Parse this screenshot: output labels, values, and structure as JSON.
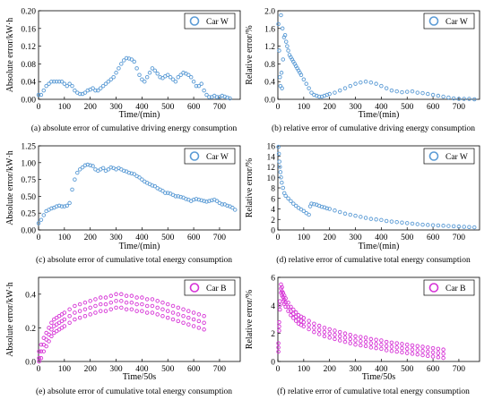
{
  "colors": {
    "blue": "#5b9bd5",
    "magenta": "#d633d6"
  },
  "chart_data": [
    {
      "id": "a",
      "type": "scatter",
      "caption": "(a) absolute error of cumulative driving energy consumption",
      "xlabel": "Time/(min)",
      "ylabel": "Absolute error/kW·h",
      "xlim": [
        0,
        780
      ],
      "ylim": [
        0,
        0.2
      ],
      "xticks": [
        0,
        100,
        200,
        300,
        400,
        500,
        600,
        700
      ],
      "yticks": [
        0.0,
        0.04,
        0.08,
        0.12,
        0.16,
        0.2
      ],
      "ytick_labels": [
        "0.00",
        "0.04",
        "0.08",
        "0.12",
        "0.16",
        "0.20"
      ],
      "legend": "Car W",
      "legend_position": "top-right",
      "marker": "circle",
      "color": "#5b9bd5",
      "series": [
        {
          "name": "Car W",
          "x": [
            0,
            10,
            20,
            30,
            40,
            50,
            60,
            70,
            80,
            90,
            100,
            110,
            120,
            130,
            140,
            150,
            160,
            170,
            180,
            190,
            200,
            210,
            220,
            230,
            240,
            250,
            260,
            270,
            280,
            290,
            300,
            310,
            320,
            330,
            340,
            350,
            360,
            370,
            380,
            390,
            400,
            410,
            420,
            430,
            440,
            450,
            460,
            470,
            480,
            490,
            500,
            510,
            520,
            530,
            540,
            550,
            560,
            570,
            580,
            590,
            600,
            610,
            620,
            630,
            640,
            650,
            660,
            670,
            680,
            690,
            700,
            710,
            720,
            730,
            740
          ],
          "y": [
            0.01,
            0.01,
            0.02,
            0.03,
            0.035,
            0.04,
            0.04,
            0.04,
            0.04,
            0.04,
            0.035,
            0.03,
            0.035,
            0.03,
            0.02,
            0.015,
            0.012,
            0.012,
            0.015,
            0.02,
            0.022,
            0.025,
            0.02,
            0.02,
            0.025,
            0.03,
            0.035,
            0.04,
            0.045,
            0.05,
            0.06,
            0.07,
            0.08,
            0.088,
            0.093,
            0.092,
            0.09,
            0.085,
            0.07,
            0.055,
            0.045,
            0.04,
            0.05,
            0.06,
            0.07,
            0.065,
            0.058,
            0.05,
            0.048,
            0.052,
            0.055,
            0.05,
            0.045,
            0.04,
            0.05,
            0.055,
            0.06,
            0.058,
            0.055,
            0.05,
            0.04,
            0.03,
            0.03,
            0.035,
            0.02,
            0.01,
            0.005,
            0.005,
            0.008,
            0.005,
            0.005,
            0.008,
            0.006,
            0.004,
            0.002
          ]
        }
      ]
    },
    {
      "id": "b",
      "type": "scatter",
      "caption": "(b) relative error of cumulative driving energy consumption",
      "xlabel": "Time/(min)",
      "ylabel": "Relative error/%",
      "xlim": [
        0,
        780
      ],
      "ylim": [
        0,
        2.0
      ],
      "xticks": [
        0,
        100,
        200,
        300,
        400,
        500,
        600,
        700
      ],
      "yticks": [
        0.0,
        0.4,
        0.8,
        1.2,
        1.6,
        2.0
      ],
      "ytick_labels": [
        "0.0",
        "0.4",
        "0.8",
        "1.2",
        "1.6",
        "2.0"
      ],
      "legend": "Car W",
      "legend_position": "top-right",
      "marker": "circle",
      "color": "#5b9bd5",
      "series": [
        {
          "name": "Car W",
          "x": [
            2,
            5,
            8,
            10,
            12,
            14,
            16,
            18,
            20,
            24,
            28,
            32,
            36,
            40,
            45,
            50,
            55,
            60,
            65,
            70,
            75,
            80,
            85,
            90,
            100,
            110,
            120,
            130,
            140,
            150,
            160,
            170,
            180,
            190,
            200,
            220,
            240,
            260,
            280,
            300,
            320,
            340,
            360,
            380,
            400,
            420,
            440,
            460,
            480,
            500,
            520,
            540,
            560,
            580,
            600,
            620,
            640,
            660,
            680,
            700,
            720,
            740,
            760
          ],
          "y": [
            1.7,
            1.1,
            0.5,
            0.3,
            1.9,
            0.6,
            0.25,
            1.6,
            0.9,
            1.4,
            1.45,
            1.3,
            1.2,
            1.1,
            1.0,
            0.95,
            0.9,
            0.85,
            0.8,
            0.75,
            0.7,
            0.65,
            0.6,
            0.55,
            0.45,
            0.35,
            0.25,
            0.15,
            0.1,
            0.08,
            0.06,
            0.06,
            0.08,
            0.1,
            0.12,
            0.15,
            0.2,
            0.25,
            0.3,
            0.35,
            0.38,
            0.4,
            0.38,
            0.35,
            0.3,
            0.25,
            0.2,
            0.18,
            0.16,
            0.17,
            0.18,
            0.15,
            0.14,
            0.12,
            0.1,
            0.08,
            0.06,
            0.04,
            0.02,
            0.01,
            0.01,
            0.01,
            0.0
          ]
        }
      ]
    },
    {
      "id": "c",
      "type": "scatter",
      "caption": "(c) absolute error of cumulative total energy consumption",
      "xlabel": "Time/(min)",
      "ylabel": "Absolute error/kW·h",
      "xlim": [
        0,
        780
      ],
      "ylim": [
        0,
        1.25
      ],
      "xticks": [
        0,
        100,
        200,
        300,
        400,
        500,
        600,
        700
      ],
      "yticks": [
        0.0,
        0.25,
        0.5,
        0.75,
        1.0,
        1.25
      ],
      "ytick_labels": [
        "0.00",
        "0.25",
        "0.50",
        "0.75",
        "1.00",
        "1.25"
      ],
      "legend": "Car W",
      "legend_position": "top-right",
      "marker": "circle",
      "color": "#5b9bd5",
      "series": [
        {
          "name": "Car W",
          "x": [
            0,
            10,
            20,
            30,
            40,
            50,
            60,
            70,
            80,
            90,
            100,
            110,
            120,
            130,
            140,
            150,
            160,
            170,
            180,
            190,
            200,
            210,
            220,
            230,
            240,
            250,
            260,
            270,
            280,
            290,
            300,
            310,
            320,
            330,
            340,
            350,
            360,
            370,
            380,
            390,
            400,
            410,
            420,
            430,
            440,
            450,
            460,
            470,
            480,
            490,
            500,
            510,
            520,
            530,
            540,
            550,
            560,
            570,
            580,
            590,
            600,
            610,
            620,
            630,
            640,
            650,
            660,
            670,
            680,
            690,
            700,
            710,
            720,
            730,
            740,
            750,
            760
          ],
          "y": [
            0.1,
            0.15,
            0.22,
            0.28,
            0.3,
            0.32,
            0.33,
            0.35,
            0.36,
            0.35,
            0.35,
            0.36,
            0.4,
            0.6,
            0.75,
            0.85,
            0.9,
            0.93,
            0.96,
            0.97,
            0.96,
            0.95,
            0.9,
            0.88,
            0.9,
            0.92,
            0.88,
            0.9,
            0.93,
            0.92,
            0.9,
            0.92,
            0.9,
            0.88,
            0.87,
            0.85,
            0.84,
            0.83,
            0.8,
            0.78,
            0.75,
            0.72,
            0.7,
            0.68,
            0.66,
            0.65,
            0.62,
            0.6,
            0.58,
            0.55,
            0.55,
            0.54,
            0.52,
            0.5,
            0.5,
            0.49,
            0.48,
            0.46,
            0.45,
            0.43,
            0.45,
            0.46,
            0.45,
            0.44,
            0.43,
            0.42,
            0.43,
            0.44,
            0.45,
            0.43,
            0.4,
            0.38,
            0.38,
            0.36,
            0.35,
            0.33,
            0.3
          ]
        }
      ]
    },
    {
      "id": "d",
      "type": "scatter",
      "caption": "(d) relative error of cumulative total energy consumption",
      "xlabel": "Time/(min)",
      "ylabel": "Relative error/%",
      "xlim": [
        0,
        780
      ],
      "ylim": [
        0,
        16
      ],
      "xticks": [
        0,
        100,
        200,
        300,
        400,
        500,
        600,
        700
      ],
      "yticks": [
        0,
        2,
        4,
        6,
        8,
        10,
        12,
        14,
        16
      ],
      "ytick_labels": [
        "0",
        "2",
        "4",
        "6",
        "8",
        "10",
        "12",
        "14",
        "16"
      ],
      "legend": "Car W",
      "legend_position": "top-right",
      "marker": "circle",
      "color": "#5b9bd5",
      "series": [
        {
          "name": "Car W",
          "x": [
            2,
            4,
            6,
            8,
            10,
            12,
            15,
            20,
            25,
            30,
            40,
            50,
            60,
            70,
            80,
            90,
            100,
            110,
            120,
            125,
            130,
            140,
            150,
            160,
            170,
            180,
            190,
            200,
            220,
            240,
            260,
            280,
            300,
            320,
            340,
            360,
            380,
            400,
            420,
            440,
            460,
            480,
            500,
            520,
            540,
            560,
            580,
            600,
            620,
            640,
            660,
            680,
            700,
            720,
            740,
            760
          ],
          "y": [
            15.8,
            14.5,
            13.0,
            12.0,
            11.0,
            10.0,
            9.0,
            8.0,
            7.0,
            6.5,
            6.0,
            5.5,
            5.0,
            4.6,
            4.2,
            3.9,
            3.6,
            3.2,
            2.9,
            4.5,
            5.0,
            4.9,
            4.8,
            4.6,
            4.4,
            4.3,
            4.1,
            4.0,
            3.7,
            3.4,
            3.1,
            2.9,
            2.7,
            2.5,
            2.3,
            2.1,
            2.0,
            1.9,
            1.7,
            1.6,
            1.5,
            1.4,
            1.3,
            1.2,
            1.1,
            1.0,
            0.95,
            0.9,
            0.85,
            0.8,
            0.75,
            0.7,
            0.65,
            0.6,
            0.55,
            0.5
          ]
        }
      ]
    },
    {
      "id": "e",
      "type": "scatter",
      "caption": "(e) absolute error of cumulative total energy consumption",
      "xlabel": "Time/50s",
      "ylabel": "Absolute error/kW·h",
      "xlim": [
        0,
        780
      ],
      "ylim": [
        0,
        0.5
      ],
      "xticks": [
        0,
        100,
        200,
        300,
        400,
        500,
        600,
        700
      ],
      "yticks": [
        0.0,
        0.2,
        0.4
      ],
      "ytick_labels": [
        "0.0",
        "0.2",
        "0.4"
      ],
      "legend": "Car B",
      "legend_position": "top-right",
      "marker": "circle",
      "color": "#d633d6",
      "series": [
        {
          "name": "Car B",
          "x": [
            2,
            10,
            20,
            30,
            40,
            50,
            60,
            70,
            80,
            90,
            100,
            120,
            140,
            160,
            180,
            200,
            220,
            240,
            260,
            280,
            300,
            320,
            340,
            360,
            380,
            400,
            420,
            440,
            460,
            480,
            500,
            520,
            540,
            560,
            580,
            600,
            620,
            640
          ],
          "y": [
            0.02,
            0.06,
            0.1,
            0.13,
            0.16,
            0.19,
            0.21,
            0.22,
            0.23,
            0.24,
            0.25,
            0.27,
            0.29,
            0.3,
            0.31,
            0.32,
            0.33,
            0.34,
            0.34,
            0.35,
            0.36,
            0.36,
            0.35,
            0.35,
            0.34,
            0.34,
            0.33,
            0.33,
            0.32,
            0.31,
            0.3,
            0.29,
            0.28,
            0.27,
            0.26,
            0.25,
            0.24,
            0.23
          ],
          "band": 0.04
        }
      ]
    },
    {
      "id": "f",
      "type": "scatter",
      "caption": "(f) relative error of cumulative total energy consumption",
      "xlabel": "Time/50s",
      "ylabel": "Relative error/%",
      "xlim": [
        0,
        780
      ],
      "ylim": [
        0,
        6
      ],
      "xticks": [
        0,
        100,
        200,
        300,
        400,
        500,
        600,
        700
      ],
      "yticks": [
        0,
        2,
        4,
        6
      ],
      "ytick_labels": [
        "0",
        "2",
        "4",
        "6"
      ],
      "legend": "Car B",
      "legend_position": "top-right",
      "marker": "circle",
      "color": "#d633d6",
      "series": [
        {
          "name": "Car B",
          "x": [
            2,
            5,
            8,
            12,
            16,
            20,
            25,
            30,
            40,
            50,
            60,
            70,
            80,
            90,
            100,
            120,
            140,
            160,
            180,
            200,
            220,
            240,
            260,
            280,
            300,
            320,
            340,
            360,
            380,
            400,
            420,
            440,
            460,
            480,
            500,
            520,
            540,
            560,
            580,
            600,
            620,
            640
          ],
          "y": [
            1.0,
            2.5,
            4.0,
            5.2,
            5.0,
            4.6,
            4.4,
            4.2,
            3.9,
            3.6,
            3.4,
            3.2,
            3.0,
            2.9,
            2.8,
            2.6,
            2.4,
            2.25,
            2.1,
            2.0,
            1.9,
            1.8,
            1.7,
            1.6,
            1.5,
            1.45,
            1.4,
            1.3,
            1.25,
            1.2,
            1.1,
            1.05,
            1.0,
            0.95,
            0.9,
            0.85,
            0.8,
            0.75,
            0.7,
            0.65,
            0.6,
            0.55
          ],
          "band": 0.3
        }
      ]
    }
  ]
}
